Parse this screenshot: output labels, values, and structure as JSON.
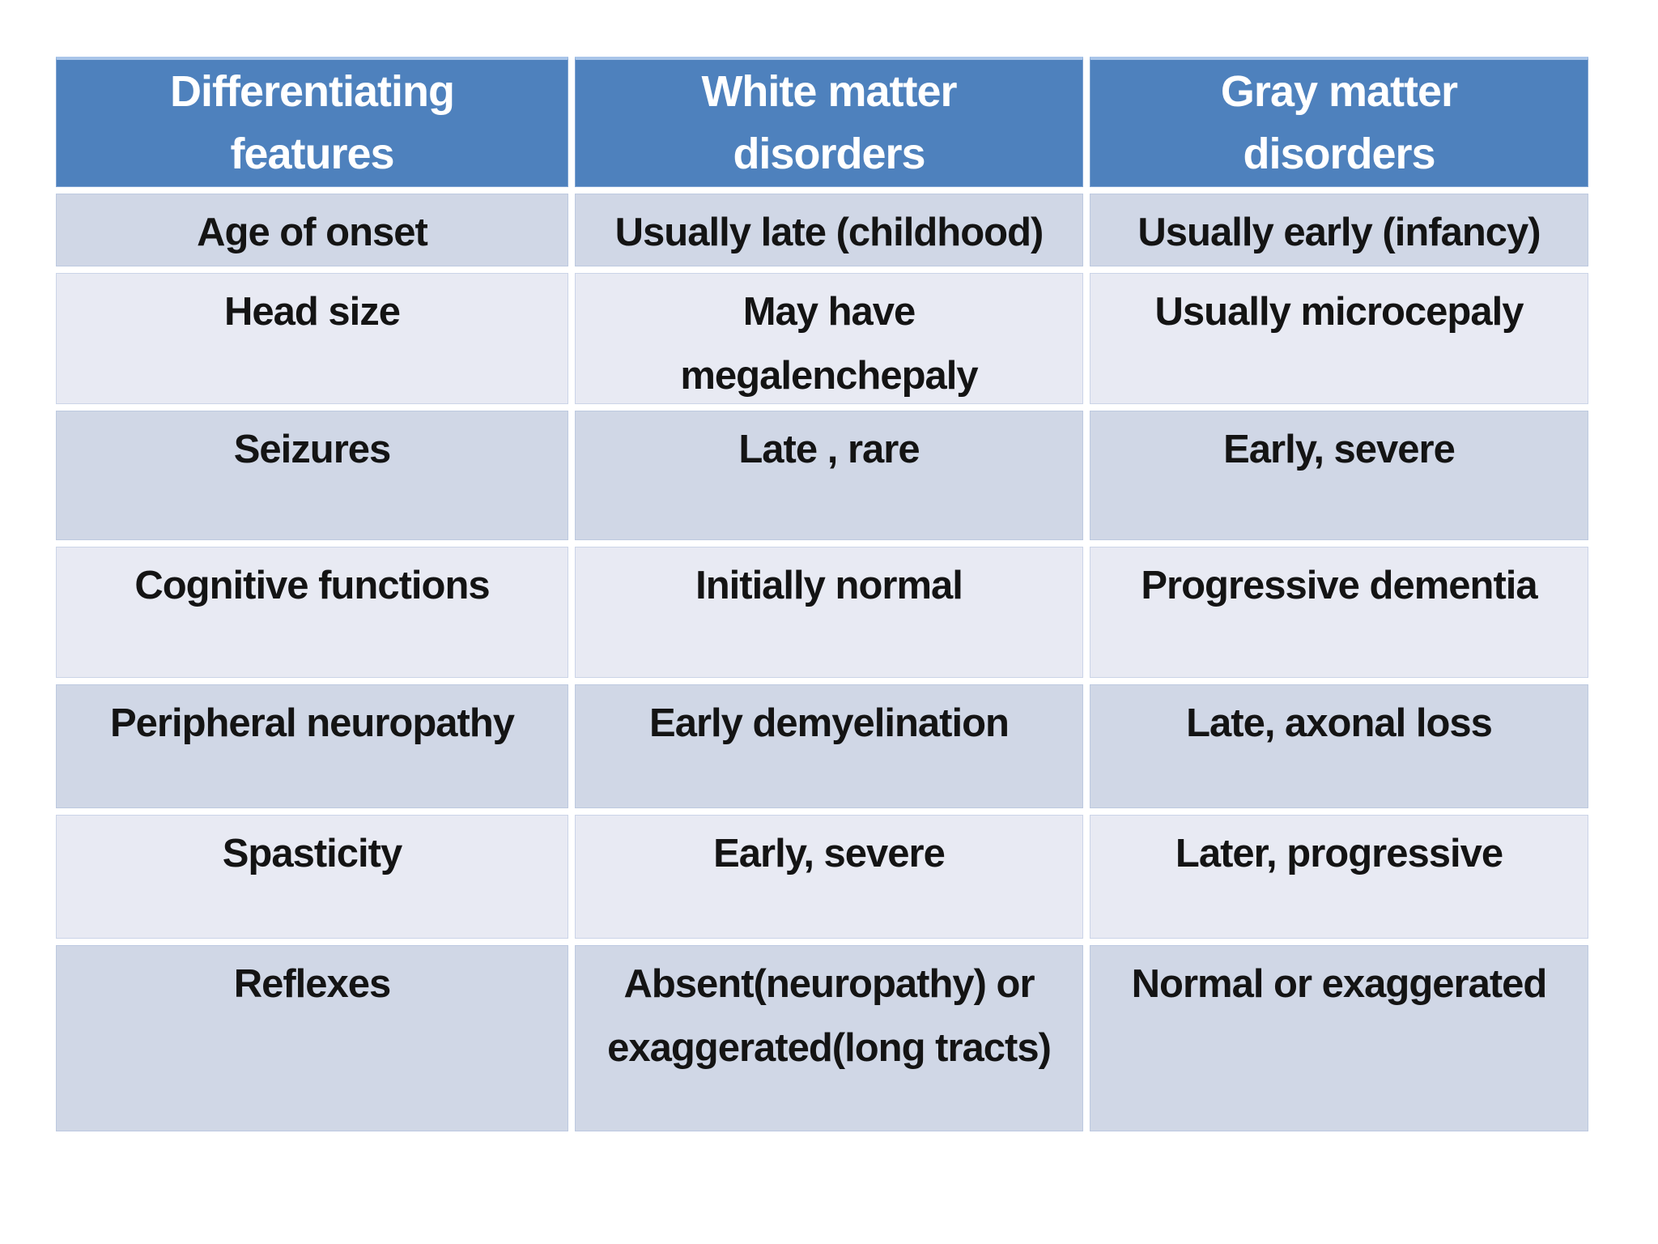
{
  "colors": {
    "header-bg": "#4e81bd",
    "header-text": "#ffffff",
    "band-dark": "#d0d7e6",
    "band-light": "#e8eaf3",
    "text": "#141414",
    "page-bg": "#ffffff",
    "border-light": "#a9c5e9"
  },
  "table": {
    "header": [
      "Differentiating\nfeatures",
      "White matter\ndisorders",
      "Gray matter\ndisorders"
    ],
    "rows": [
      {
        "feature": "Age of onset",
        "white": "Usually late (childhood)",
        "gray": "Usually early (infancy)"
      },
      {
        "feature": "Head size",
        "white": "May have\nmegalenchepaly",
        "gray": "Usually microcepaly"
      },
      {
        "feature": "Seizures",
        "white": "Late , rare",
        "gray": "Early, severe"
      },
      {
        "feature": "Cognitive functions",
        "white": "Initially normal",
        "gray": "Progressive dementia"
      },
      {
        "feature": "Peripheral neuropathy",
        "white": "Early demyelination",
        "gray": "Late, axonal loss"
      },
      {
        "feature": "Spasticity",
        "white": "Early, severe",
        "gray": "Later, progressive"
      },
      {
        "feature": "Reflexes",
        "white": "Absent(neuropathy) or\nexaggerated(long tracts)",
        "gray": "Normal or exaggerated"
      }
    ]
  }
}
